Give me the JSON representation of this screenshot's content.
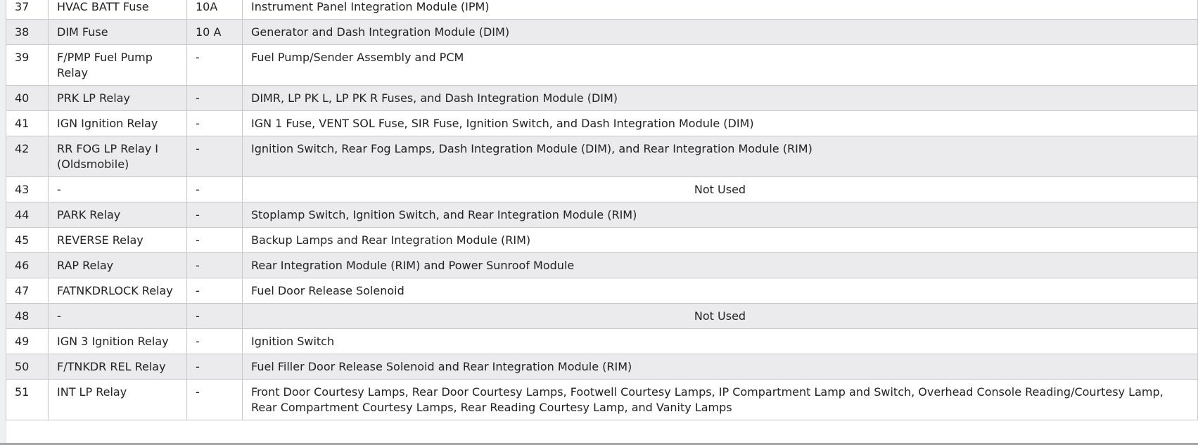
{
  "rows": [
    {
      "no": "37",
      "name": "HVAC BATT Fuse",
      "rating": "10A",
      "circuit": "Instrument Panel Integration Module (IPM)"
    },
    {
      "no": "38",
      "name": "DIM Fuse",
      "rating": "10 A",
      "circuit": "Generator and Dash Integration Module (DIM)"
    },
    {
      "no": "39",
      "name": "F/PMP Fuel Pump Relay",
      "rating": "-",
      "circuit": "Fuel Pump/Sender Assembly and PCM"
    },
    {
      "no": "40",
      "name": "PRK LP Relay",
      "rating": "-",
      "circuit": "DIMR, LP PK L, LP PK R Fuses, and Dash Integration Module (DIM)"
    },
    {
      "no": "41",
      "name": "IGN Ignition Relay",
      "rating": "-",
      "circuit": "IGN 1 Fuse, VENT SOL Fuse, SIR Fuse, Ignition Switch, and Dash Integration Module (DIM)"
    },
    {
      "no": "42",
      "name": "RR FOG LP Relay I (Oldsmobile)",
      "rating": "-",
      "circuit": "Ignition Switch, Rear Fog Lamps, Dash Integration Module (DIM), and Rear Integration Module (RIM)"
    },
    {
      "no": "43",
      "name": "-",
      "rating": "-",
      "circuit": "Not Used",
      "center": true
    },
    {
      "no": "44",
      "name": "PARK Relay",
      "rating": "-",
      "circuit": "Stoplamp Switch, Ignition Switch, and Rear Integration Module (RIM)"
    },
    {
      "no": "45",
      "name": "REVERSE Relay",
      "rating": "-",
      "circuit": "Backup Lamps and Rear Integration Module (RIM)"
    },
    {
      "no": "46",
      "name": "RAP Relay",
      "rating": "-",
      "circuit": "Rear Integration Module (RIM) and Power Sunroof Module"
    },
    {
      "no": "47",
      "name": "FATNKDRLOCK Relay",
      "rating": "-",
      "circuit": "Fuel Door Release Solenoid"
    },
    {
      "no": "48",
      "name": "-",
      "rating": "-",
      "circuit": "Not Used",
      "center": true
    },
    {
      "no": "49",
      "name": "IGN 3 Ignition Relay",
      "rating": "-",
      "circuit": "Ignition Switch"
    },
    {
      "no": "50",
      "name": "F/TNKDR REL Relay",
      "rating": "-",
      "circuit": "Fuel Filler Door Release Solenoid and Rear Integration Module (RIM)"
    },
    {
      "no": "51",
      "name": "INT LP Relay",
      "rating": "-",
      "circuit": "Front Door Courtesy Lamps, Rear Door Courtesy Lamps, Footwell Courtesy Lamps, IP Compartment Lamp and Switch, Overhead Console Reading/Courtesy Lamp, Rear Compartment Courtesy Lamps, Rear Reading Courtesy Lamp, and Vanity Lamps"
    }
  ]
}
